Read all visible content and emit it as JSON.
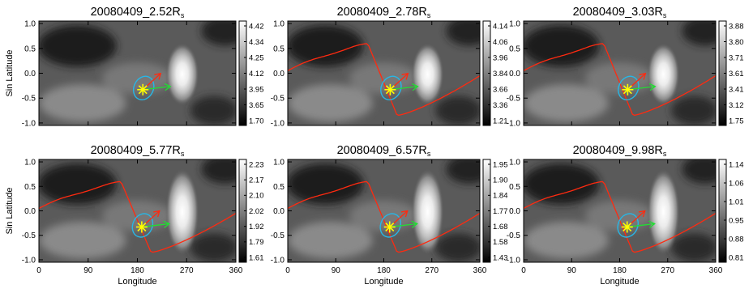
{
  "chart_data": [
    {
      "type": "heatmap",
      "title_main": "20080409_2.52R",
      "title_sub": "s",
      "xlabel": "",
      "ylabel": "Sin Latitude",
      "xlim": [
        0,
        360
      ],
      "ylim": [
        -1.05,
        1.05
      ],
      "colorbar_ticks": [
        "4.42",
        "4.34",
        "4.25",
        "4.12",
        "3.95",
        "3.65",
        "1.70"
      ],
      "colormap": "grayscale",
      "neutral_line": false,
      "star": [
        190,
        -0.33
      ],
      "hotspot": [
        262,
        -0.02
      ]
    },
    {
      "type": "heatmap",
      "title_main": "20080409_2.78R",
      "title_sub": "s",
      "xlabel": "",
      "ylabel": "",
      "xlim": [
        0,
        360
      ],
      "ylim": [
        -1.05,
        1.05
      ],
      "colorbar_ticks": [
        "4.14",
        "4.06",
        "3.96",
        "3.84",
        "3.66",
        "3.36",
        "1.21"
      ],
      "colormap": "grayscale",
      "neutral_line": true,
      "star": [
        192,
        -0.33
      ],
      "hotspot": [
        262,
        -0.02
      ]
    },
    {
      "type": "heatmap",
      "title_main": "20080409_3.03R",
      "title_sub": "s",
      "xlabel": "",
      "ylabel": "",
      "xlim": [
        0,
        360
      ],
      "ylim": [
        -1.05,
        1.05
      ],
      "colorbar_ticks": [
        "3.88",
        "3.80",
        "3.71",
        "3.61",
        "3.41",
        "3.12",
        "1.75"
      ],
      "colormap": "grayscale",
      "neutral_line": true,
      "star": [
        195,
        -0.33
      ],
      "hotspot": [
        262,
        -0.02
      ]
    },
    {
      "type": "heatmap",
      "title_main": "20080409_5.77R",
      "title_sub": "s",
      "xlabel": "Longitude",
      "ylabel": "Sin Latitude",
      "xlim": [
        0,
        360
      ],
      "ylim": [
        -1.05,
        1.05
      ],
      "colorbar_ticks": [
        "2.23",
        "2.17",
        "2.10",
        "2.02",
        "1.92",
        "1.79",
        "1.61"
      ],
      "colormap": "grayscale",
      "neutral_line": true,
      "star": [
        188,
        -0.33
      ],
      "hotspot": [
        262,
        -0.02
      ]
    },
    {
      "type": "heatmap",
      "title_main": "20080409_6.57R",
      "title_sub": "s",
      "xlabel": "Longitude",
      "ylabel": "",
      "xlim": [
        0,
        360
      ],
      "ylim": [
        -1.05,
        1.05
      ],
      "colorbar_ticks": [
        "1.95",
        "1.90",
        "1.84",
        "1.77",
        "1.68",
        "1.58",
        "1.43"
      ],
      "colormap": "grayscale",
      "neutral_line": true,
      "star": [
        191,
        -0.33
      ],
      "hotspot": [
        262,
        -0.02
      ]
    },
    {
      "type": "heatmap",
      "title_main": "20080409_9.98R",
      "title_sub": "s",
      "xlabel": "Longitude",
      "ylabel": "",
      "xlim": [
        0,
        360
      ],
      "ylim": [
        -1.05,
        1.05
      ],
      "colorbar_ticks": [
        "1.14",
        "1.06",
        "1.01",
        "0.95",
        "0.88",
        "0.81"
      ],
      "colormap": "grayscale",
      "neutral_line": true,
      "star": [
        194,
        -0.33
      ],
      "hotspot": [
        262,
        -0.02
      ]
    }
  ],
  "axes": {
    "x_ticks": [
      0,
      90,
      180,
      270,
      360
    ],
    "y_ticks": [
      1.0,
      0.5,
      0.0,
      -0.5,
      -1.0
    ],
    "y_tick_labels": [
      "1.0",
      "0.5",
      "0.0",
      "-0.5",
      "-1.0"
    ]
  },
  "colors": {
    "neutral_line": "#ff2a10",
    "ellipse": "#27b7e6",
    "arrow_green": "#22dd33",
    "arrow_red": "#ff2a10",
    "star": "#ffff00"
  }
}
